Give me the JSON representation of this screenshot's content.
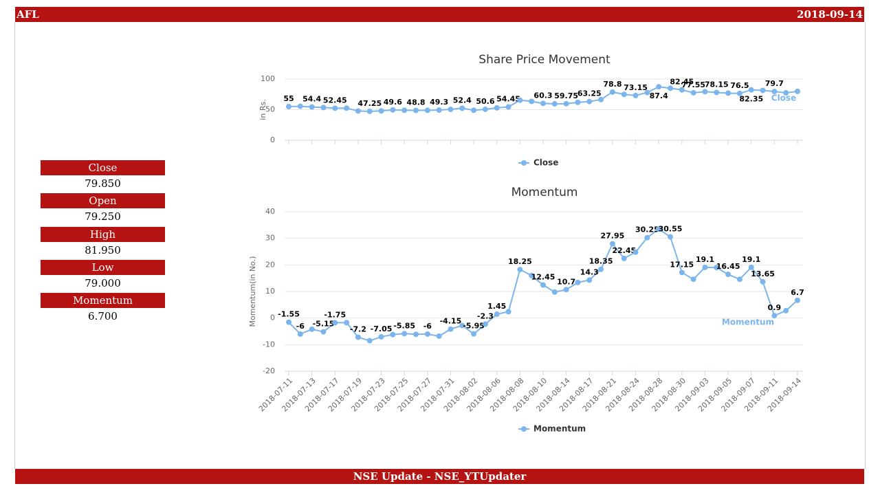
{
  "header": {
    "symbol": "AFL",
    "date": "2018-09-14"
  },
  "stats": [
    {
      "label": "Close",
      "value": "79.850"
    },
    {
      "label": "Open",
      "value": "79.250"
    },
    {
      "label": "High",
      "value": "81.950"
    },
    {
      "label": "Low",
      "value": "79.000"
    },
    {
      "label": "Momentum",
      "value": "6.700"
    }
  ],
  "footer": "NSE Update - NSE_YTUpdater",
  "chart_data": [
    {
      "type": "line",
      "title": "Share Price Movement",
      "y_label": "in Rs.",
      "ylim": [
        0,
        100
      ],
      "yticks": [
        0,
        50,
        100
      ],
      "grid": true,
      "legend": "bottom",
      "series": [
        {
          "name": "Close",
          "color": "#7cb5ec",
          "values": [
            55,
            55.5,
            54.4,
            53.5,
            52.45,
            52.5,
            47.8,
            47.25,
            48,
            49.6,
            49,
            48.8,
            49,
            49.3,
            50.5,
            52.4,
            49,
            50.6,
            53,
            54.45,
            65.5,
            63.5,
            60.3,
            59.5,
            59.75,
            62,
            63.25,
            66.5,
            78.8,
            75,
            73.15,
            78,
            87.4,
            85,
            82.45,
            77.55,
            79.5,
            78.15,
            77,
            76.5,
            82.35,
            81.5,
            79.7,
            77.5,
            79.85
          ],
          "value_labels": [
            "55",
            null,
            "54.4",
            null,
            "52.45",
            null,
            null,
            "47.25",
            null,
            "49.6",
            null,
            "48.8",
            null,
            "49.3",
            null,
            "52.4",
            null,
            "50.6",
            null,
            "54.45",
            null,
            null,
            "60.3",
            null,
            "59.75",
            null,
            "63.25",
            null,
            "78.8",
            null,
            "73.15",
            null,
            "87.4",
            null,
            "82.45",
            "77.55",
            null,
            "78.15",
            null,
            "76.5",
            "82.35",
            null,
            "79.7",
            null,
            null
          ]
        }
      ]
    },
    {
      "type": "line",
      "title": "Momentum",
      "y_label": "Momentum(in No.)",
      "ylim": [
        -20,
        40
      ],
      "yticks": [
        -20,
        -10,
        0,
        10,
        20,
        30,
        40
      ],
      "grid": true,
      "legend": "bottom",
      "categories": [
        "2018-07-11",
        null,
        "2018-07-13",
        null,
        "2018-07-17",
        null,
        "2018-07-19",
        null,
        "2018-07-23",
        null,
        "2018-07-25",
        null,
        "2018-07-27",
        null,
        "2018-07-31",
        null,
        "2018-08-02",
        null,
        "2018-08-06",
        null,
        "2018-08-08",
        null,
        "2018-08-10",
        null,
        "2018-08-14",
        null,
        "2018-08-17",
        null,
        "2018-08-21",
        null,
        "2018-08-24",
        null,
        "2018-08-28",
        null,
        "2018-08-30",
        null,
        "2018-09-03",
        null,
        "2018-09-05",
        null,
        "2018-09-07",
        null,
        "2018-09-11",
        null,
        "2018-09-14"
      ],
      "series": [
        {
          "name": "Momentum",
          "color": "#7cb5ec",
          "values": [
            -1.55,
            -6,
            -4.2,
            -5.15,
            -1.75,
            -1.7,
            -7.2,
            -8.5,
            -7.05,
            -6.2,
            -5.85,
            -6.1,
            -6,
            -6.8,
            -4.15,
            -2.8,
            -5.95,
            -2.3,
            1.45,
            2.4,
            18.25,
            16,
            12.45,
            9.8,
            10.7,
            13.4,
            14.3,
            18.35,
            27.95,
            22.45,
            24.8,
            30.25,
            33.5,
            30.55,
            17.15,
            14.6,
            19.1,
            19,
            16.45,
            14.6,
            19.1,
            13.65,
            0.9,
            2.8,
            6.7
          ],
          "value_labels": [
            "-1.55",
            "-6",
            null,
            "-5.15",
            "-1.75",
            null,
            "-7.2",
            null,
            "-7.05",
            null,
            "-5.85",
            null,
            "-6",
            null,
            "-4.15",
            null,
            "-5.95",
            "-2.3",
            "1.45",
            null,
            "18.25",
            null,
            "12.45",
            null,
            "10.7",
            null,
            "14.3",
            "18.35",
            "27.95",
            "22.45",
            null,
            "30.25",
            null,
            "30.55",
            "17.15",
            null,
            "19.1",
            null,
            "16.45",
            null,
            "19.1",
            "13.65",
            "0.9",
            null,
            "6.7"
          ]
        }
      ]
    }
  ]
}
